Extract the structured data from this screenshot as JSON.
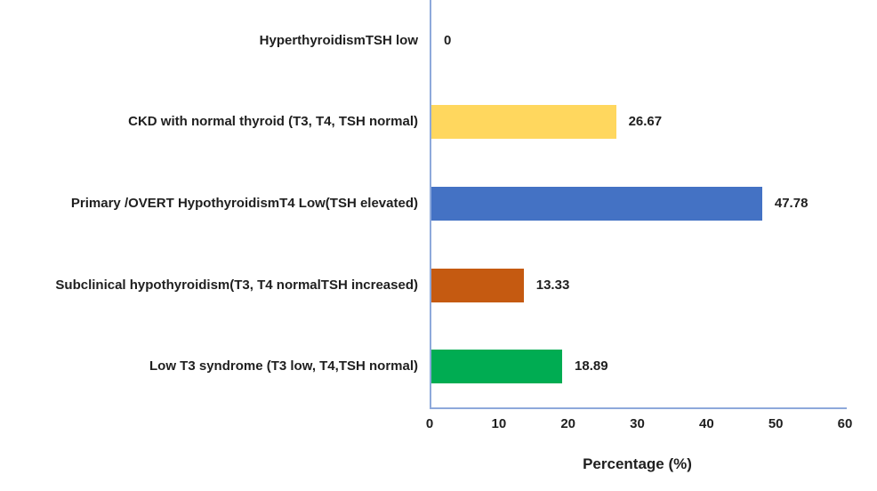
{
  "chart_data": {
    "type": "bar",
    "orientation": "horizontal",
    "title": "",
    "xlabel": "Percentage (%)",
    "ylabel": "",
    "xlim": [
      0,
      60
    ],
    "xticks": [
      "0",
      "10",
      "20",
      "30",
      "40",
      "50",
      "60"
    ],
    "grid": false,
    "legend": false,
    "categories": [
      "HyperthyroidismTSH low",
      "CKD with normal thyroid (T3, T4, TSH normal)",
      "Primary /OVERT HypothyroidismT4 Low(TSH elevated)",
      "Subclinical hypothyroidism(T3, T4 normalTSH increased)",
      "Low T3 syndrome (T3 low, T4,TSH normal)"
    ],
    "values": [
      0,
      26.67,
      47.78,
      13.33,
      18.89
    ],
    "value_labels": [
      "0",
      "26.67",
      "47.78",
      "13.33",
      "18.89"
    ],
    "bar_colors": [
      "#4472C4",
      "#FFD75E",
      "#4472C4",
      "#C55A11",
      "#00AC52"
    ],
    "axis_color": "#8EA9DB",
    "text_color": "#1f1f1f",
    "background_color": "#ffffff"
  }
}
